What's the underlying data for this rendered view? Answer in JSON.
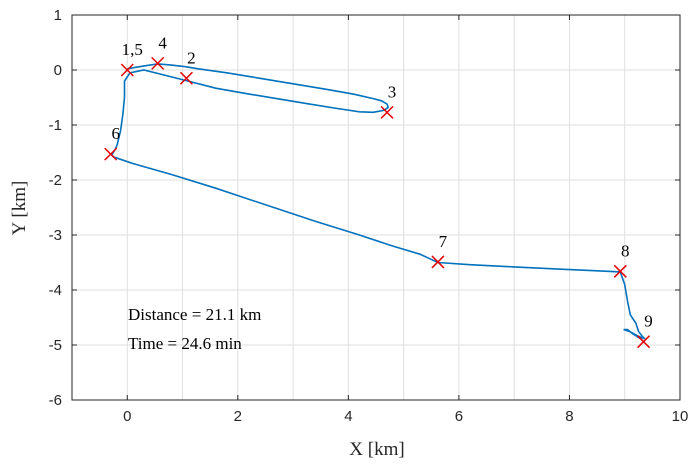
{
  "chart_data": {
    "type": "line",
    "xlabel": "X [km]",
    "ylabel": "Y [km]",
    "xlim": [
      -1,
      10
    ],
    "ylim": [
      -6,
      1
    ],
    "xticks": [
      0,
      2,
      4,
      6,
      8,
      10
    ],
    "yticks": [
      1,
      0,
      -1,
      -2,
      -3,
      -4,
      -5,
      -6
    ],
    "grid": true,
    "colors": {
      "path": "#0072BD",
      "waypoint": "#E60000",
      "grid": "#DFDFDF",
      "axis": "#262626"
    },
    "path": {
      "x": [
        0.0,
        0.15,
        0.35,
        0.55,
        0.8,
        1.05,
        1.3,
        1.8,
        2.4,
        3.0,
        3.6,
        4.1,
        4.45,
        4.6,
        4.7,
        4.72,
        4.65,
        4.45,
        4.2,
        3.8,
        3.3,
        2.7,
        2.1,
        1.6,
        1.05,
        0.7,
        0.3,
        0.05,
        -0.05,
        -0.05,
        -0.08,
        -0.12,
        -0.18,
        -0.22,
        -0.28,
        -0.25,
        0.1,
        0.8,
        1.6,
        2.5,
        3.4,
        4.2,
        4.8,
        5.3,
        5.62,
        6.2,
        7.0,
        7.8,
        8.5,
        8.92,
        9.0,
        9.05,
        9.1,
        9.2,
        9.25,
        9.3,
        9.35,
        9.32,
        9.22,
        9.12,
        9.02,
        8.98,
        9.05,
        9.15,
        9.28,
        9.34
      ],
      "y": [
        0.02,
        0.05,
        0.08,
        0.11,
        0.09,
        0.06,
        0.02,
        -0.05,
        -0.15,
        -0.25,
        -0.35,
        -0.44,
        -0.52,
        -0.56,
        -0.62,
        -0.68,
        -0.73,
        -0.77,
        -0.76,
        -0.7,
        -0.62,
        -0.52,
        -0.42,
        -0.33,
        -0.19,
        -0.1,
        0.0,
        -0.05,
        -0.2,
        -0.5,
        -0.8,
        -1.1,
        -1.35,
        -1.45,
        -1.54,
        -1.58,
        -1.7,
        -1.9,
        -2.15,
        -2.45,
        -2.75,
        -3.0,
        -3.2,
        -3.35,
        -3.5,
        -3.54,
        -3.58,
        -3.62,
        -3.65,
        -3.67,
        -3.9,
        -4.2,
        -4.45,
        -4.6,
        -4.75,
        -4.82,
        -4.88,
        -4.87,
        -4.83,
        -4.77,
        -4.73,
        -4.72,
        -4.72,
        -4.8,
        -4.88,
        -4.94
      ]
    },
    "waypoints": [
      {
        "label": "1,5",
        "x": 0.0,
        "y": 0.0,
        "label_dx": 0,
        "label_dy": 0
      },
      {
        "label": "4",
        "x": 0.55,
        "y": 0.12,
        "label_dx": 0,
        "label_dy": 0
      },
      {
        "label": "2",
        "x": 1.07,
        "y": -0.15,
        "label_dx": 0,
        "label_dy": 0
      },
      {
        "label": "3",
        "x": 4.7,
        "y": -0.77,
        "label_dx": 0,
        "label_dy": 0
      },
      {
        "label": "6",
        "x": -0.3,
        "y": -1.53,
        "label_dx": 0,
        "label_dy": 0
      },
      {
        "label": "7",
        "x": 5.62,
        "y": -3.49,
        "label_dx": 0,
        "label_dy": 0
      },
      {
        "label": "8",
        "x": 8.92,
        "y": -3.66,
        "label_dx": 0,
        "label_dy": 0
      },
      {
        "label": "9",
        "x": 9.34,
        "y": -4.94,
        "label_dx": 0,
        "label_dy": 0
      }
    ],
    "annotations": [
      "Distance = 21.1 km",
      "Time = 24.6 min"
    ]
  }
}
